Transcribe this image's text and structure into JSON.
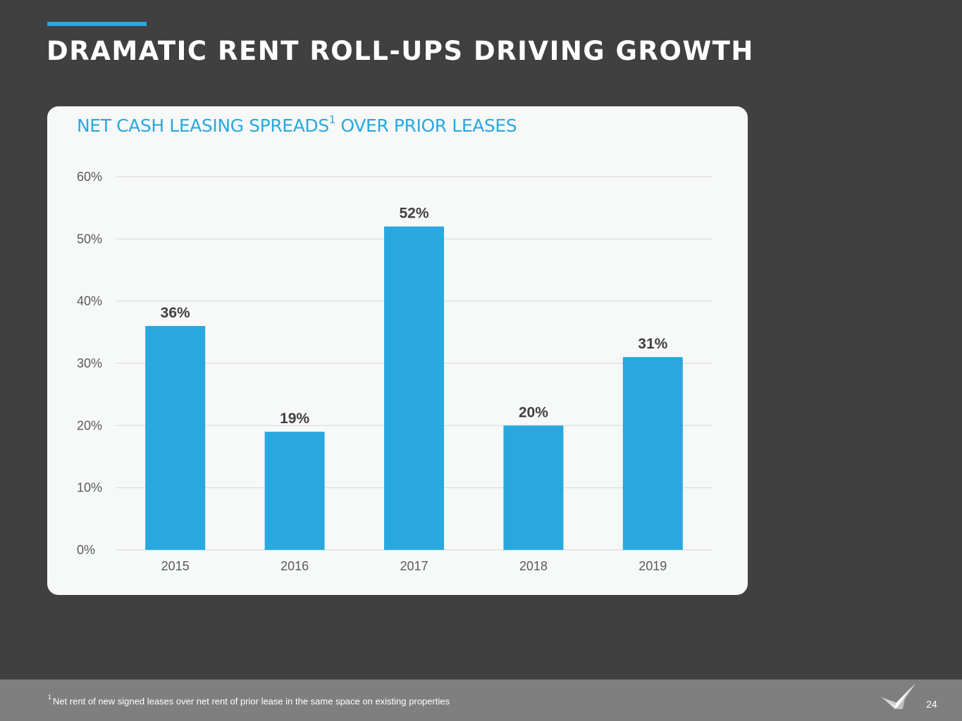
{
  "slide": {
    "title": "DRAMATIC RENT ROLL-UPS DRIVING GROWTH",
    "page_number": "24"
  },
  "chart": {
    "title_main": "NET CASH LEASING SPREADS",
    "title_superscript": "1",
    "title_rest": " OVER PRIOR LEASES"
  },
  "footer": {
    "footnote_marker": "1",
    "footnote_text": "Net rent of new signed leases over net rent of prior lease in the same space on existing properties"
  },
  "colors": {
    "background": "#404040",
    "accent": "#29a8e0",
    "bar": "#29a8e0",
    "panel": "#f7f9f9",
    "footer": "#7f7f7f"
  },
  "icons": {
    "logo": "bird-wing-logo-icon"
  },
  "chart_data": {
    "type": "bar",
    "title": "NET CASH LEASING SPREADS¹ OVER PRIOR LEASES",
    "categories": [
      "2015",
      "2016",
      "2017",
      "2018",
      "2019"
    ],
    "values": [
      36,
      19,
      52,
      20,
      31
    ],
    "value_labels": [
      "36%",
      "19%",
      "52%",
      "20%",
      "31%"
    ],
    "y_ticks": [
      0,
      10,
      20,
      30,
      40,
      50,
      60
    ],
    "y_tick_labels": [
      "0%",
      "10%",
      "20%",
      "30%",
      "40%",
      "50%",
      "60%"
    ],
    "ylim": [
      0,
      60
    ],
    "xlabel": "",
    "ylabel": "",
    "grid": true,
    "legend": "none"
  }
}
